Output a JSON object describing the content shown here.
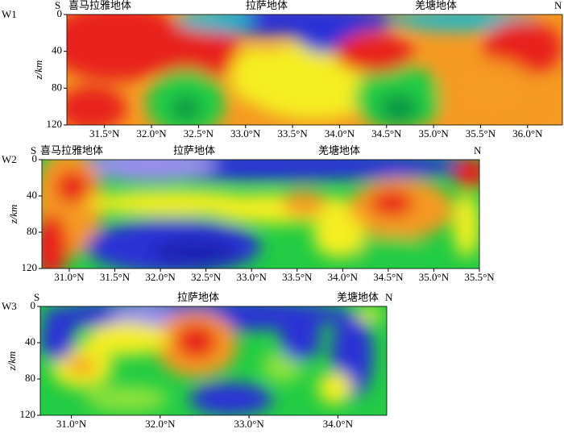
{
  "chart_data": [
    {
      "type": "contour",
      "panel_label": "W1",
      "annotations": [
        "S",
        "喜马拉雅地体",
        "拉萨地体",
        "羌塘地体",
        "N"
      ],
      "ylabel": "z/km",
      "xlim": [
        31.1,
        36.37
      ],
      "xticks": [
        {
          "value": 31.5,
          "label": "31.5°N"
        },
        {
          "value": 32.0,
          "label": "32.0°N"
        },
        {
          "value": 32.5,
          "label": "32.5°N"
        },
        {
          "value": 33.0,
          "label": "33.0°N"
        },
        {
          "value": 33.5,
          "label": "33.5°N"
        },
        {
          "value": 34.0,
          "label": "34.0°N"
        },
        {
          "value": 34.5,
          "label": "34.5°N"
        },
        {
          "value": 35.0,
          "label": "35.0°N"
        },
        {
          "value": 35.5,
          "label": "35.5°N"
        },
        {
          "value": 36.0,
          "label": "36.0°N"
        }
      ],
      "ylim": [
        120,
        0
      ],
      "yticks": [
        0,
        40,
        80,
        120
      ]
    },
    {
      "type": "contour",
      "panel_label": "W2",
      "annotations": [
        "S",
        "喜马拉雅地体",
        "拉萨地体",
        "羌塘地体",
        "N"
      ],
      "ylabel": "z/km",
      "xlim": [
        30.7,
        35.5
      ],
      "xticks": [
        {
          "value": 31.0,
          "label": "31.0°N"
        },
        {
          "value": 31.5,
          "label": "31.5°N"
        },
        {
          "value": 32.0,
          "label": "32.0°N"
        },
        {
          "value": 32.5,
          "label": "32.5°N"
        },
        {
          "value": 33.0,
          "label": "33.0°N"
        },
        {
          "value": 33.5,
          "label": "33.5°N"
        },
        {
          "value": 34.0,
          "label": "34.0°N"
        },
        {
          "value": 34.5,
          "label": "34.5°N"
        },
        {
          "value": 35.0,
          "label": "35.0°N"
        },
        {
          "value": 35.5,
          "label": "35.5°N"
        }
      ],
      "ylim": [
        120,
        0
      ],
      "yticks": [
        0,
        40,
        80,
        120
      ]
    },
    {
      "type": "contour",
      "panel_label": "W3",
      "annotations": [
        "S",
        "拉萨地体",
        "羌塘地体",
        "N"
      ],
      "ylabel": "z/km",
      "xlim": [
        30.65,
        34.55
      ],
      "xticks": [
        {
          "value": 31.0,
          "label": "31.0°N"
        },
        {
          "value": 32.0,
          "label": "32.0°N"
        },
        {
          "value": 33.0,
          "label": "33.0°N"
        },
        {
          "value": 34.0,
          "label": "34.0°N"
        }
      ],
      "ylim": [
        120,
        0
      ],
      "yticks": [
        0,
        40,
        80,
        120
      ]
    }
  ]
}
